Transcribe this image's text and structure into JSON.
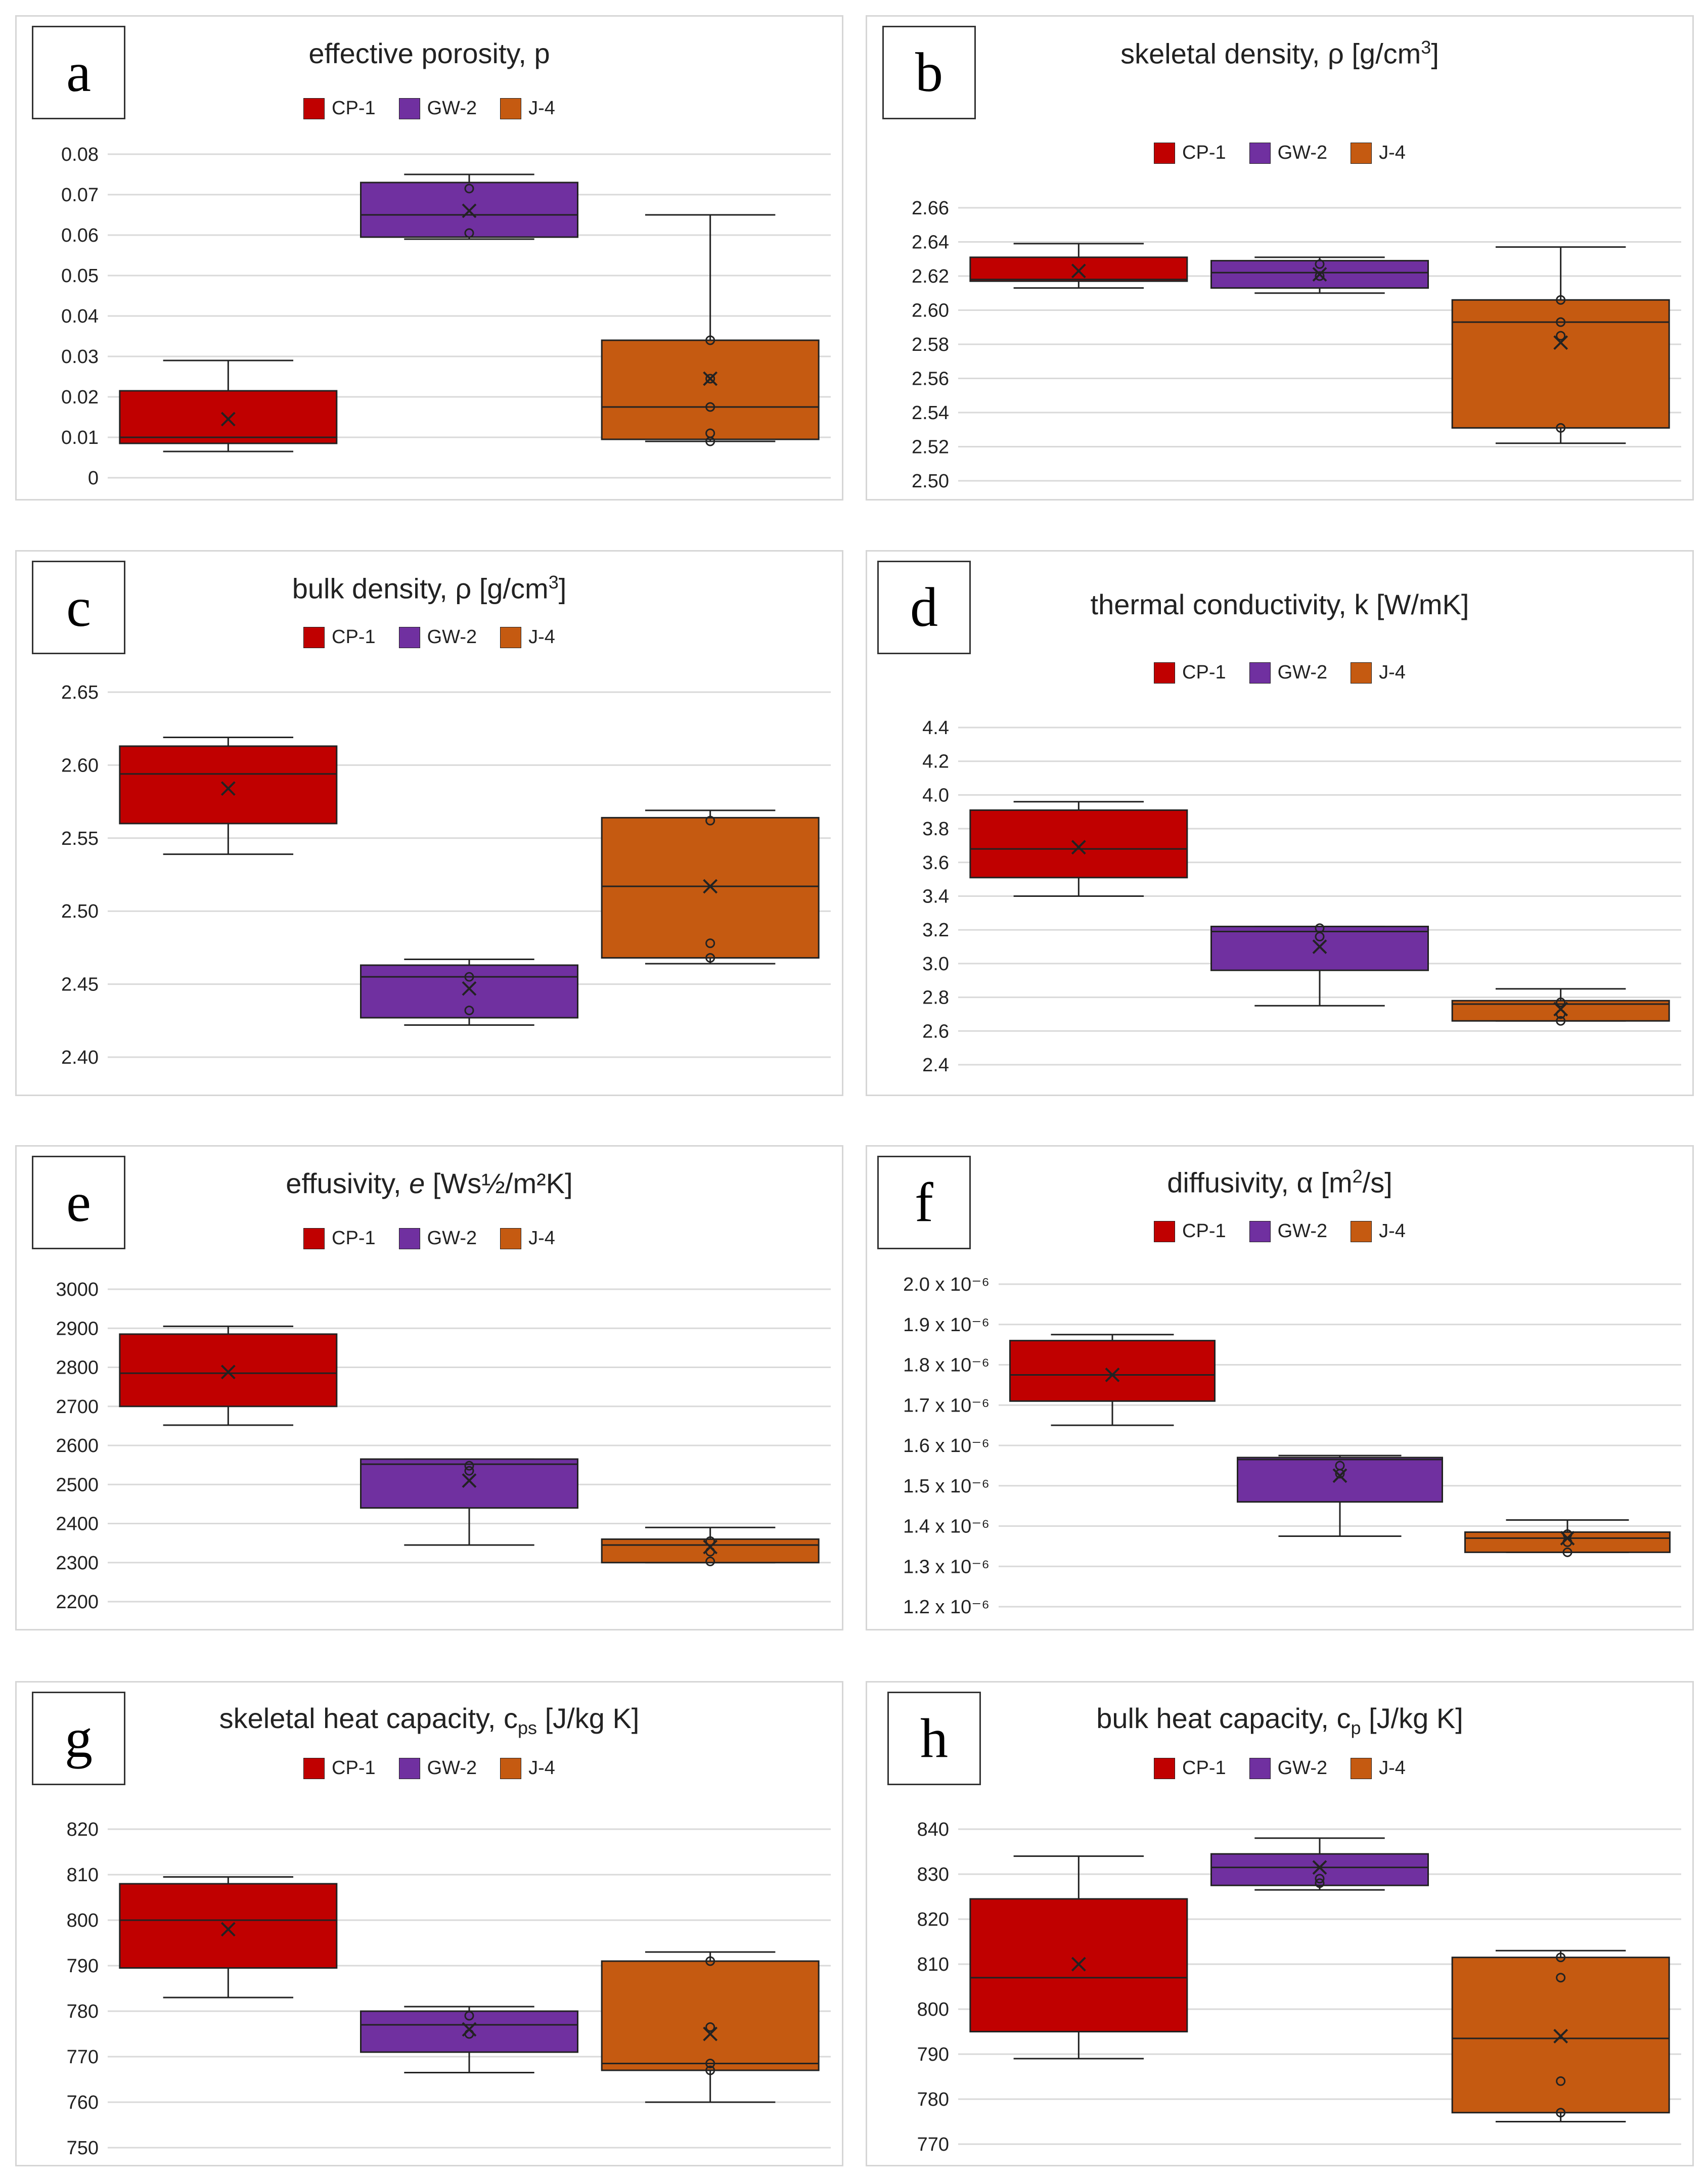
{
  "colors": {
    "CP-1": "#c00000",
    "GW-2": "#7030a0",
    "J-4": "#c55a11",
    "grid": "#d9d9d9",
    "stroke": "#222222"
  },
  "series_names": [
    "CP-1",
    "GW-2",
    "J-4"
  ],
  "chart_data": [
    {
      "id": "a",
      "type": "box",
      "letter": "a",
      "title": "effective porosity, p",
      "yticks": [
        "0.08",
        "0.07",
        "0.06",
        "0.05",
        "0.04",
        "0.03",
        "0.02",
        "0.01",
        "0"
      ],
      "ylim": [
        0,
        0.08
      ],
      "legend": [
        "CP-1",
        "GW-2",
        "J-4"
      ],
      "series": [
        {
          "name": "CP-1",
          "min": 0.0065,
          "q1": 0.0085,
          "median": 0.01,
          "q3": 0.0215,
          "max": 0.029,
          "mean": 0.0145,
          "points": []
        },
        {
          "name": "GW-2",
          "min": 0.059,
          "q1": 0.0595,
          "median": 0.065,
          "q3": 0.073,
          "max": 0.075,
          "mean": 0.066,
          "points": [
            0.0715,
            0.0605
          ]
        },
        {
          "name": "J-4",
          "min": 0.009,
          "q1": 0.0095,
          "median": 0.0175,
          "q3": 0.034,
          "max": 0.065,
          "mean": 0.0245,
          "points": [
            0.034,
            0.0245,
            0.0175,
            0.011,
            0.009
          ]
        }
      ]
    },
    {
      "id": "b",
      "type": "box",
      "letter": "b",
      "title_main": "skeletal density, ρ [g/cm",
      "title_sup": "3",
      "title_end": "]",
      "yticks": [
        "2.66",
        "2.64",
        "2.62",
        "2.60",
        "2.58",
        "2.56",
        "2.54",
        "2.52",
        "2.50"
      ],
      "ylim": [
        2.5,
        2.66
      ],
      "legend": [
        "CP-1",
        "GW-2",
        "J-4"
      ],
      "series": [
        {
          "name": "CP-1",
          "min": 2.613,
          "q1": 2.617,
          "median": 2.618,
          "q3": 2.631,
          "max": 2.639,
          "mean": 2.623,
          "points": []
        },
        {
          "name": "GW-2",
          "min": 2.61,
          "q1": 2.613,
          "median": 2.622,
          "q3": 2.629,
          "max": 2.631,
          "mean": 2.621,
          "points": [
            2.627,
            2.62
          ]
        },
        {
          "name": "J-4",
          "min": 2.522,
          "q1": 2.531,
          "median": 2.593,
          "q3": 2.606,
          "max": 2.637,
          "mean": 2.581,
          "points": [
            2.606,
            2.593,
            2.585,
            2.531
          ]
        }
      ]
    },
    {
      "id": "c",
      "type": "box",
      "letter": "c",
      "title_main": "bulk density, ρ [g/cm",
      "title_sup": "3",
      "title_end": "]",
      "yticks": [
        "2.65",
        "2.60",
        "2.55",
        "2.50",
        "2.45",
        "2.40"
      ],
      "ylim": [
        2.4,
        2.65
      ],
      "legend": [
        "CP-1",
        "GW-2",
        "J-4"
      ],
      "series": [
        {
          "name": "CP-1",
          "min": 2.539,
          "q1": 2.56,
          "median": 2.594,
          "q3": 2.613,
          "max": 2.619,
          "mean": 2.584,
          "points": []
        },
        {
          "name": "GW-2",
          "min": 2.422,
          "q1": 2.427,
          "median": 2.455,
          "q3": 2.463,
          "max": 2.467,
          "mean": 2.447,
          "points": [
            2.455,
            2.432
          ]
        },
        {
          "name": "J-4",
          "min": 2.464,
          "q1": 2.468,
          "median": 2.517,
          "q3": 2.564,
          "max": 2.569,
          "mean": 2.517,
          "points": [
            2.562,
            2.478,
            2.468
          ]
        }
      ]
    },
    {
      "id": "d",
      "type": "box",
      "letter": "d",
      "title": "thermal conductivity, k [W/mK]",
      "yticks": [
        "4.4",
        "4.2",
        "4.0",
        "3.8",
        "3.6",
        "3.4",
        "3.2",
        "3.0",
        "2.8",
        "2.6",
        "2.4"
      ],
      "ylim": [
        2.4,
        4.4
      ],
      "legend": [
        "CP-1",
        "GW-2",
        "J-4"
      ],
      "series": [
        {
          "name": "CP-1",
          "min": 3.4,
          "q1": 3.51,
          "median": 3.68,
          "q3": 3.91,
          "max": 3.96,
          "mean": 3.69,
          "points": []
        },
        {
          "name": "GW-2",
          "min": 2.75,
          "q1": 2.96,
          "median": 3.19,
          "q3": 3.22,
          "max": 3.22,
          "mean": 3.1,
          "points": [
            3.21,
            3.16
          ]
        },
        {
          "name": "J-4",
          "min": 2.66,
          "q1": 2.66,
          "median": 2.76,
          "q3": 2.78,
          "max": 2.85,
          "mean": 2.73,
          "points": [
            2.77,
            2.7,
            2.66
          ]
        }
      ]
    },
    {
      "id": "e",
      "type": "box",
      "letter": "e",
      "title_main": "effusivity, ",
      "title_var": "e",
      "title_end": " [Ws½/m²K]",
      "yticks": [
        "3000",
        "2900",
        "2800",
        "2700",
        "2600",
        "2500",
        "2400",
        "2300",
        "2200"
      ],
      "ylim": [
        2200,
        3000
      ],
      "legend": [
        "CP-1",
        "GW-2",
        "J-4"
      ],
      "series": [
        {
          "name": "CP-1",
          "min": 2652,
          "q1": 2700,
          "median": 2785,
          "q3": 2885,
          "max": 2905,
          "mean": 2788,
          "points": []
        },
        {
          "name": "GW-2",
          "min": 2345,
          "q1": 2440,
          "median": 2552,
          "q3": 2565,
          "max": 2565,
          "mean": 2510,
          "points": [
            2548,
            2535
          ]
        },
        {
          "name": "J-4",
          "min": 2300,
          "q1": 2300,
          "median": 2345,
          "q3": 2360,
          "max": 2390,
          "mean": 2340,
          "points": [
            2355,
            2328,
            2303
          ]
        }
      ]
    },
    {
      "id": "f",
      "type": "box",
      "letter": "f",
      "title_main": "diffusivity, α [m",
      "title_sup": "2",
      "title_end": "/s]",
      "yticks": [
        "2.0 x 10⁻⁶",
        "1.9 x 10⁻⁶",
        "1.8 x 10⁻⁶",
        "1.7 x 10⁻⁶",
        "1.6 x 10⁻⁶",
        "1.5 x 10⁻⁶",
        "1.4 x 10⁻⁶",
        "1.3 x 10⁻⁶",
        "1.2 x 10⁻⁶"
      ],
      "ylim": [
        1.2,
        2.0
      ],
      "y_unit": "x 10^-6 m²/s",
      "legend": [
        "CP-1",
        "GW-2",
        "J-4"
      ],
      "series": [
        {
          "name": "CP-1",
          "min": 1.65,
          "q1": 1.71,
          "median": 1.775,
          "q3": 1.86,
          "max": 1.875,
          "mean": 1.775,
          "points": []
        },
        {
          "name": "GW-2",
          "min": 1.375,
          "q1": 1.46,
          "median": 1.565,
          "q3": 1.57,
          "max": 1.575,
          "mean": 1.525,
          "points": [
            1.55,
            1.53
          ]
        },
        {
          "name": "J-4",
          "min": 1.335,
          "q1": 1.335,
          "median": 1.37,
          "q3": 1.385,
          "max": 1.415,
          "mean": 1.37,
          "points": [
            1.38,
            1.36,
            1.335
          ]
        }
      ]
    },
    {
      "id": "g",
      "type": "box",
      "letter": "g",
      "title_main": "skeletal heat capacity, c",
      "title_sub": "ps",
      "title_end": " [J/kg K]",
      "yticks": [
        "820",
        "810",
        "800",
        "790",
        "780",
        "770",
        "760",
        "750"
      ],
      "ylim": [
        750,
        820
      ],
      "legend": [
        "CP-1",
        "GW-2",
        "J-4"
      ],
      "series": [
        {
          "name": "CP-1",
          "min": 783,
          "q1": 789.5,
          "median": 800,
          "q3": 808,
          "max": 809.5,
          "mean": 798,
          "points": []
        },
        {
          "name": "GW-2",
          "min": 766.5,
          "q1": 771,
          "median": 777,
          "q3": 780,
          "max": 781,
          "mean": 776,
          "points": [
            779,
            775
          ]
        },
        {
          "name": "J-4",
          "min": 760,
          "q1": 767,
          "median": 768.5,
          "q3": 791,
          "max": 793,
          "mean": 775,
          "points": [
            791,
            776.5,
            768.5,
            767
          ]
        }
      ]
    },
    {
      "id": "h",
      "type": "box",
      "letter": "h",
      "title_main": "bulk heat capacity, c",
      "title_sub": "p",
      "title_end": " [J/kg K]",
      "yticks": [
        "840",
        "830",
        "820",
        "810",
        "800",
        "790",
        "780",
        "770"
      ],
      "ylim": [
        770,
        840
      ],
      "legend": [
        "CP-1",
        "GW-2",
        "J-4"
      ],
      "series": [
        {
          "name": "CP-1",
          "min": 789,
          "q1": 795,
          "median": 807,
          "q3": 824.5,
          "max": 834,
          "mean": 810,
          "points": []
        },
        {
          "name": "GW-2",
          "min": 826.5,
          "q1": 827.5,
          "median": 831.5,
          "q3": 834.5,
          "max": 838,
          "mean": 831.5,
          "points": [
            829,
            828
          ]
        },
        {
          "name": "J-4",
          "min": 775,
          "q1": 777,
          "median": 793.5,
          "q3": 811.5,
          "max": 813,
          "mean": 794,
          "points": [
            811.5,
            807,
            784,
            777
          ]
        }
      ]
    }
  ]
}
